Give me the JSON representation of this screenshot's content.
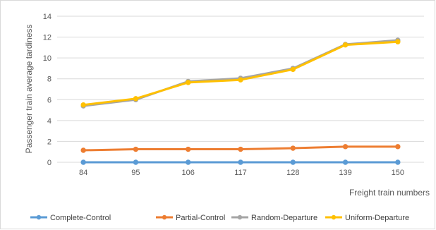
{
  "chart_data": {
    "type": "line",
    "xlabel": "Freight train numbers",
    "ylabel": "Passenger train average tardiness",
    "categories": [
      "84",
      "95",
      "106",
      "117",
      "128",
      "139",
      "150"
    ],
    "ylim": [
      0,
      14
    ],
    "yticks": [
      "0",
      "2",
      "4",
      "6",
      "8",
      "10",
      "12",
      "14"
    ],
    "grid": "horizontal",
    "legend_position": "bottom",
    "series": [
      {
        "name": "Complete-Control",
        "color": "#5B9BD5",
        "values": [
          0,
          0,
          0,
          0,
          0,
          0,
          0
        ]
      },
      {
        "name": "Partial-Control",
        "color": "#ED7D31",
        "values": [
          1.15,
          1.25,
          1.25,
          1.25,
          1.35,
          1.5,
          1.5
        ]
      },
      {
        "name": "Random-Departure",
        "color": "#A5A5A5",
        "values": [
          5.4,
          6.0,
          7.75,
          8.05,
          9.0,
          11.3,
          11.7
        ]
      },
      {
        "name": "Uniform-Departure",
        "color": "#FFC000",
        "values": [
          5.5,
          6.1,
          7.65,
          7.9,
          8.9,
          11.25,
          11.55
        ]
      }
    ]
  }
}
